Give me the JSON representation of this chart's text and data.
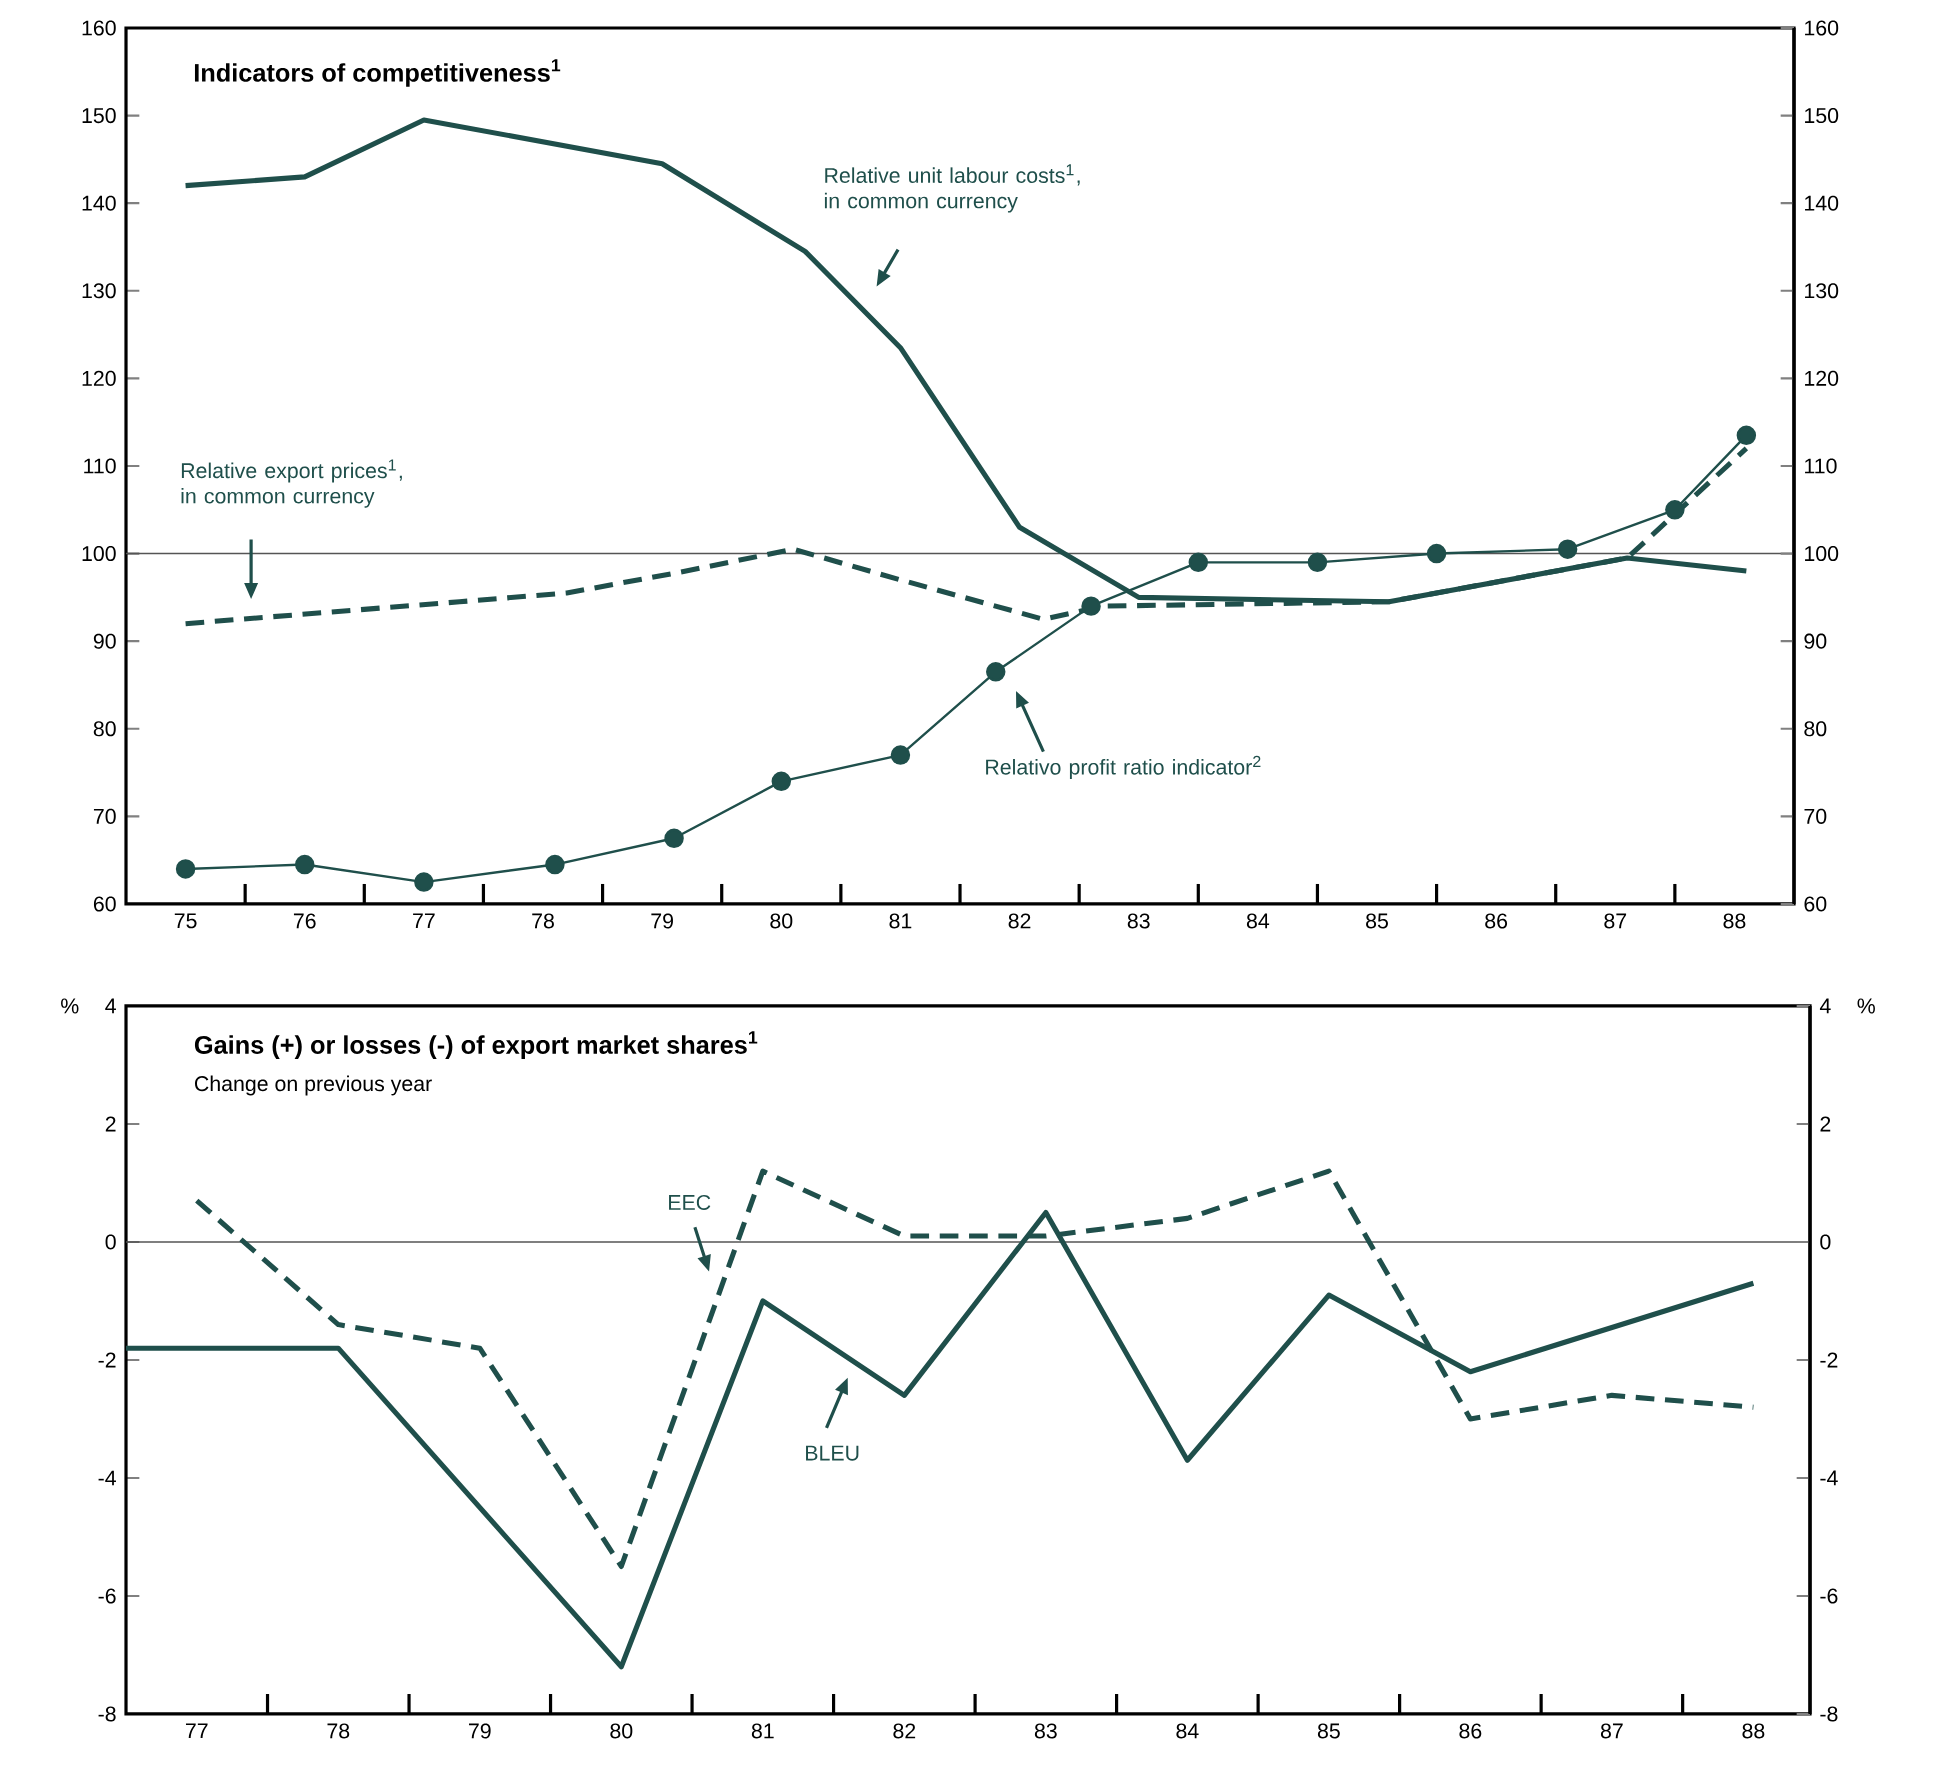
{
  "chart_data": [
    {
      "type": "line",
      "title": "**Indicators of competitiveness$^{1}$**",
      "xlim": [
        74.5,
        88.5
      ],
      "xticks": [
        75,
        {
          "value": 75.5,
          "label": null
        },
        76,
        {
          "value": 76.5,
          "label": null
        },
        77,
        {
          "value": 77.5,
          "label": null
        },
        78,
        {
          "value": 78.5,
          "label": null
        },
        79,
        {
          "value": 79.5,
          "label": null
        },
        80,
        {
          "value": 80.5,
          "label": null
        },
        81,
        {
          "value": 81.5,
          "label": null
        },
        82,
        {
          "value": 82.5,
          "label": null
        },
        83,
        {
          "value": 83.5,
          "label": null
        },
        84,
        {
          "value": 84.5,
          "label": null
        },
        85,
        {
          "value": 85.5,
          "label": null
        },
        86,
        {
          "value": 86.5,
          "label": null
        },
        87,
        {
          "value": 87.5,
          "label": null
        },
        88
      ],
      "ylim": [
        60,
        160
      ],
      "yticks": [
        60,
        70,
        80,
        90,
        100,
        110,
        120,
        130,
        140,
        150,
        160
      ],
      "y2lim": [
        60,
        160
      ],
      "y2ticks": [
        60,
        70,
        80,
        90,
        100,
        110,
        120,
        130,
        140,
        150,
        160
      ],
      "ref_lines": [
        {
          "axis": "y",
          "value": 100,
          "color": "#555555"
        }
      ],
      "series": [
        {
          "name": "Relative unit labour costs$^{1}$, in common currency",
          "color": "#1f4f4b",
          "line_style": "solid",
          "marker": "none",
          "x": [
            75,
            76,
            77,
            79,
            80.2,
            81,
            82,
            83,
            85.1,
            87.1,
            88.1
          ],
          "values": [
            142,
            143,
            149.5,
            144.5,
            134.5,
            123.5,
            103,
            95,
            94.5,
            99.5,
            98
          ]
        },
        {
          "name": "Relative export prices$^{1}$, in common currency",
          "color": "#1f4f4b",
          "line_style": "dashed",
          "marker": "none",
          "x": [
            75,
            77.3,
            78.2,
            79.2,
            80.1,
            81,
            82.2,
            82.7,
            85.1,
            87.1,
            88.1
          ],
          "values": [
            92,
            94.5,
            95.5,
            98,
            100.5,
            97,
            92.5,
            94,
            94.5,
            99.5,
            112
          ]
        },
        {
          "name": "Relativo profit ratio indicator$^{2}$",
          "color": "#1f4f4b",
          "line_style": "solid",
          "marker": "circle",
          "x": [
            75,
            76,
            77,
            78.1,
            79.1,
            80,
            81,
            81.8,
            82.6,
            83.5,
            84.5,
            85.5,
            86.6,
            87.5,
            88.1
          ],
          "values": [
            64,
            64.5,
            62.5,
            64.5,
            67.5,
            74,
            77,
            86.5,
            94,
            99,
            99,
            100,
            100.5,
            105,
            113.5
          ]
        }
      ]
    },
    {
      "type": "line",
      "title": "**Gains (+) or losses (-) of export market shares$^{1}$**",
      "subtitle": "Change on previous year",
      "ylabel": "%",
      "y2label": "%",
      "xlim": [
        76.5,
        88.4
      ],
      "xticks": [
        77,
        {
          "value": 77.5,
          "label": null
        },
        78,
        {
          "value": 78.5,
          "label": null
        },
        79,
        {
          "value": 79.5,
          "label": null
        },
        80,
        {
          "value": 80.5,
          "label": null
        },
        81,
        {
          "value": 81.5,
          "label": null
        },
        82,
        {
          "value": 82.5,
          "label": null
        },
        83,
        {
          "value": 83.5,
          "label": null
        },
        84,
        {
          "value": 84.5,
          "label": null
        },
        85,
        {
          "value": 85.5,
          "label": null
        },
        86,
        {
          "value": 86.5,
          "label": null
        },
        87,
        {
          "value": 87.5,
          "label": null
        },
        88
      ],
      "ylim": [
        -8,
        4
      ],
      "yticks": [
        -8,
        -6,
        -4,
        -2,
        0,
        2,
        4
      ],
      "y2lim": [
        -8,
        4
      ],
      "y2ticks": [
        -8,
        -6,
        -4,
        -2,
        0,
        2,
        4
      ],
      "ref_lines": [
        {
          "axis": "y",
          "value": 0,
          "color": "#555555"
        }
      ],
      "series": [
        {
          "name": "EEC",
          "color": "#1f4f4b",
          "line_style": "dashed",
          "marker": "none",
          "x": [
            77,
            78,
            79,
            80,
            81,
            82,
            83,
            84,
            85,
            86,
            87,
            88
          ],
          "values": [
            0.7,
            -1.4,
            -1.8,
            -5.5,
            1.2,
            0.1,
            0.1,
            0.4,
            1.2,
            -3,
            -2.6,
            -2.8
          ]
        },
        {
          "name": "BLEU",
          "color": "#1f4f4b",
          "line_style": "solid",
          "marker": "none",
          "x": [
            76.5,
            78,
            80,
            81,
            82,
            83,
            84,
            85,
            86,
            88
          ],
          "values": [
            -1.8,
            -1.8,
            -7.2,
            -1,
            -2.6,
            0.5,
            -3.7,
            -0.9,
            -2.2,
            -0.7
          ]
        }
      ]
    }
  ]
}
